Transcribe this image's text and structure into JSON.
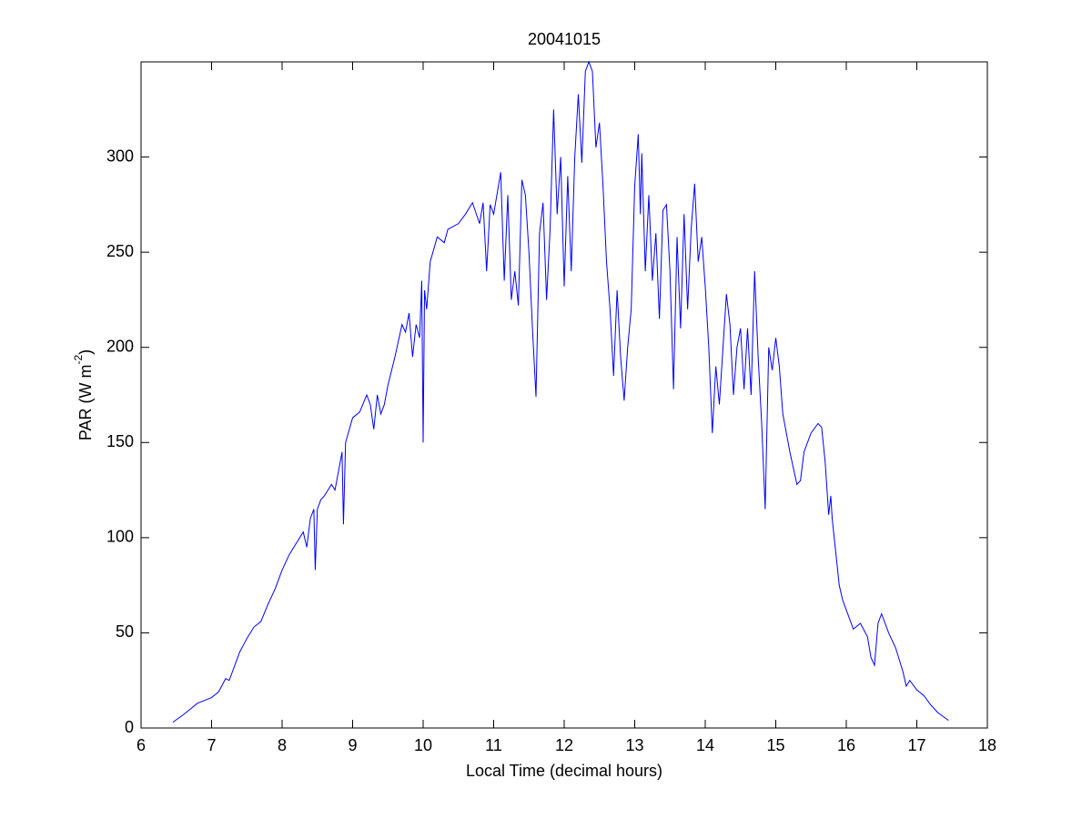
{
  "chart_data": {
    "type": "line",
    "title": "20041015",
    "xlabel": "Local Time (decimal hours)",
    "ylabel": [
      "PAR (W m",
      "-2",
      ")"
    ],
    "xlim": [
      6,
      18
    ],
    "xticks": [
      6,
      7,
      8,
      9,
      10,
      11,
      12,
      13,
      14,
      15,
      16,
      17,
      18
    ],
    "ylim": [
      0,
      350
    ],
    "yticks": [
      0,
      50,
      100,
      150,
      200,
      250,
      300
    ],
    "grid": false,
    "series": [
      {
        "color": "#0000ff",
        "x": [
          6.45,
          6.6,
          6.8,
          7.0,
          7.1,
          7.2,
          7.25,
          7.3,
          7.4,
          7.5,
          7.6,
          7.7,
          7.8,
          7.9,
          8.0,
          8.1,
          8.2,
          8.3,
          8.35,
          8.4,
          8.45,
          8.47,
          8.5,
          8.55,
          8.6,
          8.7,
          8.75,
          8.8,
          8.85,
          8.87,
          8.9,
          9.0,
          9.1,
          9.2,
          9.25,
          9.3,
          9.35,
          9.4,
          9.45,
          9.5,
          9.6,
          9.7,
          9.75,
          9.8,
          9.85,
          9.9,
          9.95,
          9.98,
          10.0,
          10.02,
          10.05,
          10.1,
          10.2,
          10.3,
          10.35,
          10.4,
          10.5,
          10.6,
          10.7,
          10.8,
          10.85,
          10.9,
          10.95,
          11.0,
          11.1,
          11.15,
          11.2,
          11.25,
          11.3,
          11.35,
          11.4,
          11.45,
          11.5,
          11.55,
          11.6,
          11.65,
          11.7,
          11.75,
          11.8,
          11.85,
          11.9,
          11.95,
          12.0,
          12.05,
          12.1,
          12.15,
          12.2,
          12.25,
          12.3,
          12.35,
          12.4,
          12.45,
          12.5,
          12.55,
          12.6,
          12.65,
          12.7,
          12.75,
          12.8,
          12.85,
          12.9,
          12.95,
          13.0,
          13.05,
          13.08,
          13.1,
          13.15,
          13.2,
          13.25,
          13.3,
          13.35,
          13.4,
          13.45,
          13.5,
          13.55,
          13.6,
          13.65,
          13.7,
          13.75,
          13.8,
          13.85,
          13.9,
          13.95,
          14.0,
          14.05,
          14.1,
          14.15,
          14.2,
          14.3,
          14.35,
          14.4,
          14.45,
          14.5,
          14.55,
          14.6,
          14.65,
          14.7,
          14.75,
          14.8,
          14.85,
          14.9,
          14.95,
          15.0,
          15.05,
          15.1,
          15.2,
          15.3,
          15.35,
          15.4,
          15.5,
          15.6,
          15.65,
          15.7,
          15.75,
          15.78,
          15.8,
          15.9,
          15.95,
          16.0,
          16.1,
          16.2,
          16.3,
          16.35,
          16.4,
          16.45,
          16.5,
          16.6,
          16.7,
          16.8,
          16.85,
          16.9,
          17.0,
          17.1,
          17.2,
          17.3,
          17.45
        ],
        "values": [
          3,
          7,
          13,
          16,
          19,
          26,
          25,
          30,
          40,
          47,
          53,
          56,
          65,
          73,
          83,
          91,
          97,
          103,
          95,
          110,
          115,
          83,
          115,
          120,
          122,
          128,
          125,
          135,
          145,
          107,
          150,
          163,
          166,
          175,
          170,
          157,
          175,
          165,
          170,
          180,
          195,
          212,
          208,
          218,
          195,
          212,
          205,
          235,
          150,
          230,
          220,
          245,
          258,
          255,
          262,
          263,
          265,
          270,
          276,
          265,
          276,
          240,
          275,
          270,
          292,
          235,
          280,
          225,
          240,
          222,
          288,
          280,
          250,
          210,
          174,
          260,
          276,
          225,
          262,
          325,
          270,
          300,
          232,
          290,
          240,
          300,
          333,
          297,
          345,
          350,
          345,
          305,
          318,
          285,
          245,
          220,
          185,
          230,
          195,
          172,
          200,
          220,
          285,
          312,
          270,
          302,
          240,
          280,
          235,
          260,
          215,
          272,
          275,
          240,
          178,
          258,
          210,
          270,
          220,
          262,
          286,
          245,
          258,
          232,
          200,
          155,
          190,
          170,
          228,
          212,
          175,
          200,
          210,
          178,
          210,
          175,
          240,
          195,
          160,
          115,
          200,
          188,
          205,
          190,
          165,
          145,
          128,
          130,
          145,
          155,
          160,
          158,
          140,
          112,
          122,
          110,
          75,
          67,
          62,
          52,
          55,
          48,
          37,
          33,
          55,
          60,
          50,
          42,
          30,
          22,
          25,
          20,
          17,
          12,
          8,
          4
        ]
      }
    ]
  }
}
